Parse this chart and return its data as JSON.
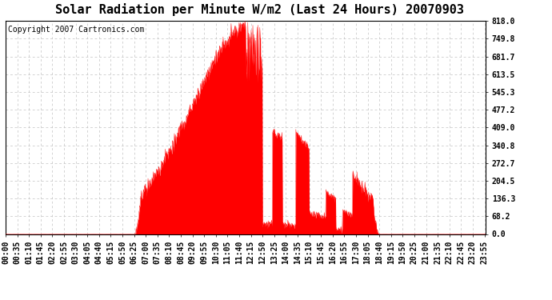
{
  "title": "Solar Radiation per Minute W/m2 (Last 24 Hours) 20070903",
  "copyright_text": "Copyright 2007 Cartronics.com",
  "y_tick_labels": [
    "0.0",
    "68.2",
    "136.3",
    "204.5",
    "272.7",
    "340.8",
    "409.0",
    "477.2",
    "545.3",
    "613.5",
    "681.7",
    "749.8",
    "818.0"
  ],
  "y_tick_values": [
    0.0,
    68.2,
    136.3,
    204.5,
    272.7,
    340.8,
    409.0,
    477.2,
    545.3,
    613.5,
    681.7,
    749.8,
    818.0
  ],
  "y_max": 818.0,
  "y_min": 0.0,
  "fill_color": "#FF0000",
  "line_color": "#FF0000",
  "dashed_line_color": "#FF0000",
  "grid_color": "#C0C0C0",
  "bg_color": "#FFFFFF",
  "plot_bg_color": "#FFFFFF",
  "title_fontsize": 11,
  "copyright_fontsize": 7,
  "tick_label_fontsize": 7,
  "x_tick_interval_minutes": 35,
  "total_minutes": 1440,
  "x_tick_labels": [
    "00:00",
    "00:35",
    "01:10",
    "01:45",
    "02:20",
    "02:55",
    "03:30",
    "04:05",
    "04:40",
    "05:15",
    "05:50",
    "06:25",
    "07:00",
    "07:35",
    "08:10",
    "08:45",
    "09:20",
    "09:55",
    "10:30",
    "11:05",
    "11:40",
    "12:15",
    "12:50",
    "13:25",
    "14:00",
    "14:35",
    "15:10",
    "15:45",
    "16:20",
    "16:55",
    "17:30",
    "18:05",
    "18:40",
    "19:15",
    "19:50",
    "20:25",
    "21:00",
    "21:35",
    "22:10",
    "22:45",
    "23:20",
    "23:55"
  ],
  "rise_minute": 385,
  "set_minute": 1120,
  "peak_minute": 745,
  "peak_value": 818.0,
  "sigma": 185.0
}
